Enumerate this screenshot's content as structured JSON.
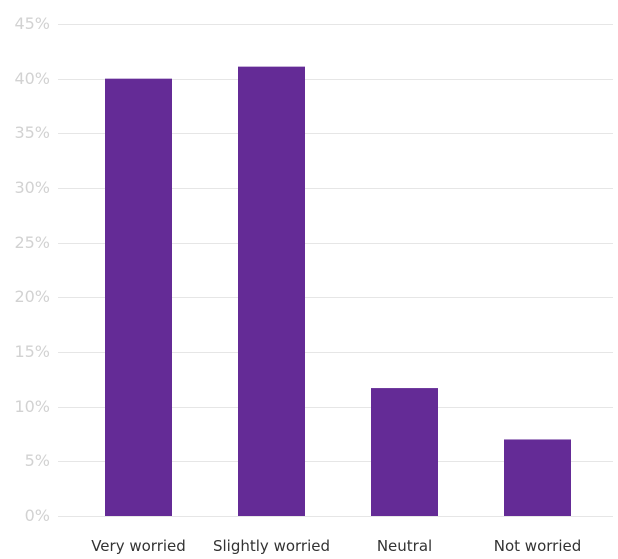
{
  "chart_data": {
    "type": "bar",
    "categories": [
      "Very worried",
      "Slightly worried",
      "Neutral",
      "Not worried"
    ],
    "values": [
      40,
      41.1,
      11.7,
      7
    ],
    "ylim": [
      0,
      45
    ],
    "y_ticks": [
      "0%",
      "5%",
      "10%",
      "15%",
      "20%",
      "25%",
      "30%",
      "35%",
      "40%",
      "45%"
    ],
    "y_tick_values": [
      0,
      5,
      10,
      15,
      20,
      25,
      30,
      35,
      40,
      45
    ],
    "grid": true,
    "colors": {
      "bar": "#642b96",
      "grid": "#e6e6e6",
      "tick_text": "#d2d2d2",
      "category_text": "#333333"
    }
  }
}
